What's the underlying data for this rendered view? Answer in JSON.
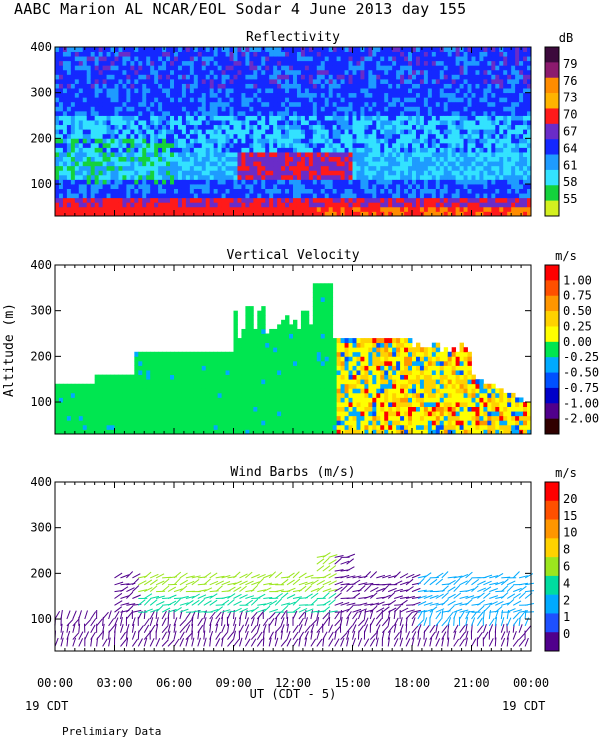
{
  "header": {
    "title": "AABC Marion AL NCAR/EOL Sodar    4 June 2013 day 155"
  },
  "footer": {
    "preliminary": "Prelimiary Data",
    "left_date": "19 CDT",
    "right_date": "19 CDT",
    "xlabel": "UT   (CDT - 5)"
  },
  "x_ticks": [
    "00:00",
    "03:00",
    "06:00",
    "09:00",
    "12:00",
    "15:00",
    "18:00",
    "21:00",
    "00:00"
  ],
  "y_ticks": [
    "400",
    "300",
    "200",
    "100"
  ],
  "ylabel": "Altitude (m)",
  "chart_data": [
    {
      "type": "heatmap",
      "title": "Reflectivity",
      "colorbar_unit": "dB",
      "colorbar_ticks": [
        "79",
        "76",
        "73",
        "70",
        "67",
        "64",
        "61",
        "58",
        "55"
      ],
      "colorbar_colors": [
        "#3c0a3c",
        "#8c1a6e",
        "#ff8c00",
        "#ffb400",
        "#ff1a1a",
        "#6a2cc8",
        "#1428ff",
        "#1e9bff",
        "#33e2ff",
        "#14d23c",
        "#d4f020"
      ],
      "xlim": [
        "00:00",
        "00:00"
      ],
      "ylim": [
        30,
        400
      ],
      "description_values": "low altitude high reflectivity band near 50 m across day"
    },
    {
      "type": "heatmap",
      "title": "Vertical Velocity",
      "colorbar_unit": "m/s",
      "colorbar_ticks": [
        "1.00",
        "0.75",
        "0.50",
        "0.25",
        "0.00",
        "-0.25",
        "-0.50",
        "-0.75",
        "-1.00",
        "-2.00"
      ],
      "colorbar_colors": [
        "#ff0000",
        "#ff5000",
        "#ff9600",
        "#ffd200",
        "#ffff00",
        "#00e650",
        "#00aaff",
        "#0050ff",
        "#0000c8",
        "#50008c",
        "#300000"
      ],
      "xlim": [
        "00:00",
        "00:00"
      ],
      "ylim": [
        30,
        400
      ]
    },
    {
      "type": "scatter",
      "title": "Wind Barbs (m/s)",
      "colorbar_unit": "m/s",
      "colorbar_ticks": [
        "20",
        "15",
        "10",
        "8",
        "6",
        "4",
        "2",
        "1",
        "0"
      ],
      "colorbar_colors": [
        "#ff0000",
        "#ff5000",
        "#ff9600",
        "#ffd200",
        "#9be61e",
        "#00dca0",
        "#00aaff",
        "#1e50ff",
        "#50008c"
      ],
      "xlim": [
        "00:00",
        "00:00"
      ],
      "ylim": [
        30,
        400
      ]
    }
  ]
}
